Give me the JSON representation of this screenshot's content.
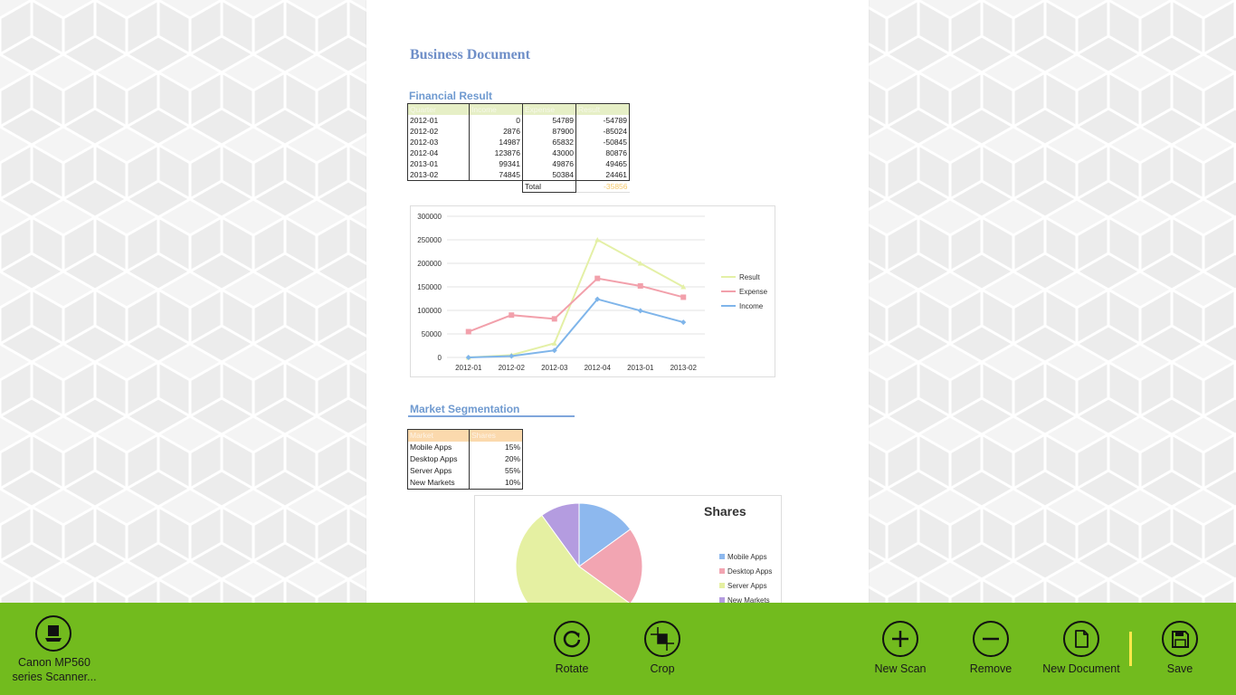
{
  "colors": {
    "toolbar": "#72bb1e",
    "result": "#e4f0a6",
    "expense": "#f2a0ab",
    "income": "#7fb5ea",
    "server": "#e5f0a2",
    "mobile": "#8db8ee",
    "desktop": "#f2a5b2",
    "newmarkets": "#b49ce0"
  },
  "document": {
    "title": "Business Document",
    "financial_title": "Financial Result",
    "financial_table": {
      "headers": [
        "Quarter",
        "Income",
        "Expense",
        "Result"
      ],
      "rows": [
        [
          "2012-01",
          "0",
          "54789",
          "-54789"
        ],
        [
          "2012-02",
          "2876",
          "87900",
          "-85024"
        ],
        [
          "2012-03",
          "14987",
          "65832",
          "-50845"
        ],
        [
          "2012-04",
          "123876",
          "43000",
          "80876"
        ],
        [
          "2013-01",
          "99341",
          "49876",
          "49465"
        ],
        [
          "2013-02",
          "74845",
          "50384",
          "24461"
        ]
      ],
      "total_label": "Total",
      "total_value": "-35856"
    },
    "market_title": "Market Segmentation",
    "market_table": {
      "headers": [
        "Market",
        "Shares"
      ],
      "rows": [
        [
          "Mobile Apps",
          "15%"
        ],
        [
          "Desktop Apps",
          "20%"
        ],
        [
          "Server Apps",
          "55%"
        ],
        [
          "New Markets",
          "10%"
        ]
      ]
    }
  },
  "chart_data": [
    {
      "type": "line",
      "title": "",
      "categories": [
        "2012-01",
        "2012-02",
        "2012-03",
        "2012-04",
        "2013-01",
        "2013-02"
      ],
      "y_ticks": [
        "300000",
        "250000",
        "200000",
        "150000",
        "100000",
        "50000",
        "0"
      ],
      "ylim": [
        0,
        300000
      ],
      "grid": true,
      "legend": "right",
      "series": [
        {
          "name": "Result",
          "values": [
            0,
            5000,
            30000,
            250000,
            200000,
            150000
          ]
        },
        {
          "name": "Expense",
          "values": [
            54789,
            90000,
            82000,
            168000,
            152000,
            128000
          ]
        },
        {
          "name": "Income",
          "values": [
            0,
            2876,
            14987,
            123876,
            99341,
            74845
          ]
        }
      ]
    },
    {
      "type": "pie",
      "title": "Shares",
      "legend": "right",
      "categories": [
        "Mobile Apps",
        "Desktop Apps",
        "Server Apps",
        "New Markets"
      ],
      "values": [
        15,
        20,
        55,
        10
      ]
    }
  ],
  "toolbar": {
    "scanner_label_line1": "Canon MP560",
    "scanner_label_line2": "series Scanner...",
    "rotate": "Rotate",
    "crop": "Crop",
    "new_scan": "New Scan",
    "remove": "Remove",
    "new_document": "New Document",
    "save": "Save"
  }
}
